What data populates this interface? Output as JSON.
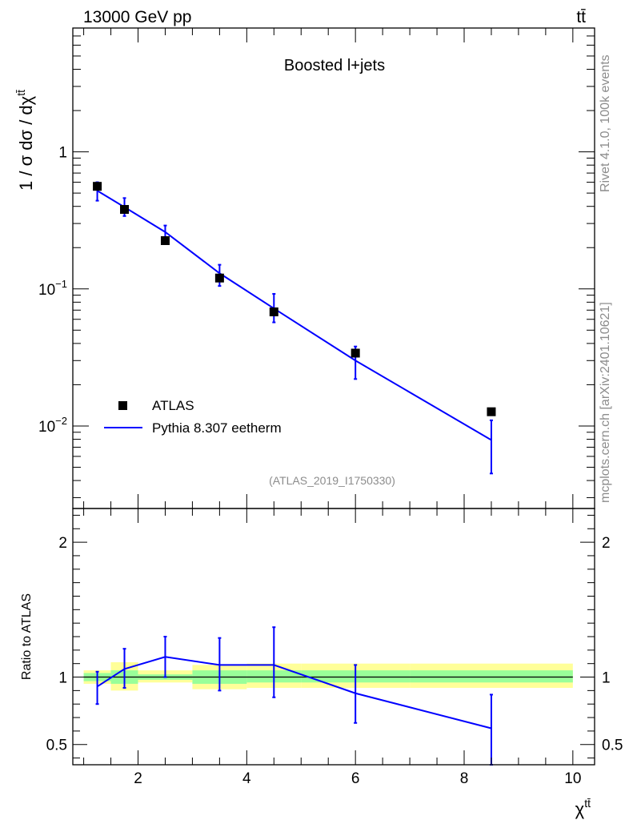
{
  "header": {
    "beam_label": "13000 GeV pp",
    "process_label": "tt̄"
  },
  "side_labels": {
    "rivet": "Rivet 4.1.0,  100k events",
    "mcplots": "mcplots.cern.ch [arXiv:2401.10621]"
  },
  "chart_data": [
    {
      "panel": "main",
      "type": "scatter",
      "title": "Boosted l+jets",
      "analysis_id": "(ATLAS_2019_I1750330)",
      "ylabel": "1 / σ dσ / dχ^tt̄",
      "xlim": [
        0.8,
        10.4
      ],
      "ylim": [
        0.0025,
        8
      ],
      "yscale": "log",
      "ytick_labels": [
        {
          "base": "1",
          "exp": ""
        },
        {
          "base": "10",
          "exp": "−1"
        },
        {
          "base": "10",
          "exp": "−2"
        }
      ],
      "legend": {
        "position": "bottom-left",
        "entries": [
          "ATLAS",
          "Pythia 8.307 eetherm"
        ]
      },
      "series": [
        {
          "name": "ATLAS",
          "marker": "square",
          "color": "#000000",
          "x": [
            1.25,
            1.75,
            2.5,
            3.5,
            4.5,
            6.0,
            8.5
          ],
          "y": [
            0.56,
            0.38,
            0.225,
            0.12,
            0.068,
            0.034,
            0.0127
          ]
        },
        {
          "name": "Pythia 8.307 eetherm",
          "marker": "line",
          "color": "#0000ff",
          "x": [
            1.25,
            1.75,
            2.5,
            3.5,
            4.5,
            6.0,
            8.5
          ],
          "y": [
            0.52,
            0.395,
            0.26,
            0.13,
            0.072,
            0.03,
            0.0079
          ],
          "yerr_low": [
            0.44,
            0.34,
            0.23,
            0.105,
            0.057,
            0.022,
            0.0045
          ],
          "yerr_high": [
            0.6,
            0.46,
            0.29,
            0.15,
            0.092,
            0.038,
            0.011
          ]
        }
      ]
    },
    {
      "panel": "ratio",
      "type": "line",
      "ylabel": "Ratio to ATLAS",
      "xlabel": "χ^tt̄",
      "xlim": [
        0.8,
        10.4
      ],
      "ylim": [
        0.35,
        2.25
      ],
      "xticks": [
        2,
        4,
        6,
        8,
        10
      ],
      "yticks": [
        0.5,
        1,
        2
      ],
      "ytick_labels": [
        "0.5",
        "1",
        "2"
      ],
      "reference_line": 1,
      "bands": {
        "bin_edges": [
          1.0,
          1.5,
          2.0,
          3.0,
          4.0,
          5.0,
          7.0,
          10.0
        ],
        "total_unc_low": [
          0.95,
          0.9,
          0.96,
          0.91,
          0.92,
          0.92,
          0.92
        ],
        "total_unc_high": [
          1.05,
          1.11,
          1.05,
          1.09,
          1.1,
          1.1,
          1.1
        ],
        "stat_unc_low": [
          0.97,
          0.95,
          0.98,
          0.95,
          0.96,
          0.96,
          0.96
        ],
        "stat_unc_high": [
          1.03,
          1.05,
          1.02,
          1.05,
          1.05,
          1.05,
          1.05
        ],
        "total_color": "#ffff99",
        "stat_color": "#99ff99"
      },
      "series": [
        {
          "name": "Pythia 8.307 eetherm / ATLAS",
          "color": "#0000ff",
          "x": [
            1.25,
            1.75,
            2.5,
            3.5,
            4.5,
            6.0,
            8.5
          ],
          "y": [
            0.93,
            1.06,
            1.15,
            1.09,
            1.09,
            0.88,
            0.62
          ],
          "yerr_low": [
            0.8,
            0.92,
            1.0,
            0.9,
            0.85,
            0.66,
            0.35
          ],
          "yerr_high": [
            1.04,
            1.21,
            1.3,
            1.29,
            1.37,
            1.09,
            0.87
          ]
        }
      ]
    }
  ]
}
